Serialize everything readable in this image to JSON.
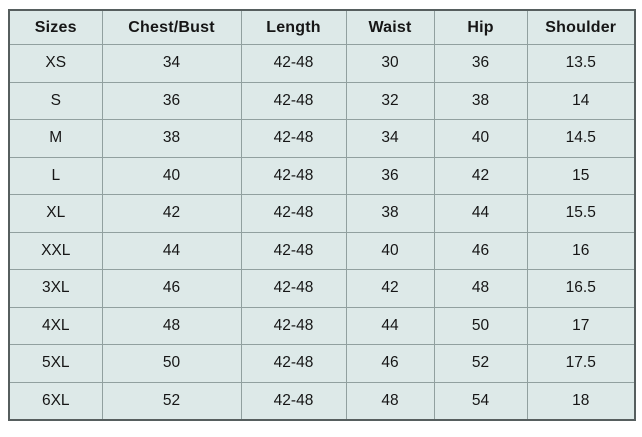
{
  "colors": {
    "page_background": "#ffffff",
    "cell_background": "#dde9e8",
    "grid_line": "#91a09f",
    "outer_border": "#565e5e",
    "text": "#161616"
  },
  "chart_data": {
    "type": "table",
    "columns": [
      "Sizes",
      "Chest/Bust",
      "Length",
      "Waist",
      "Hip",
      "Shoulder"
    ],
    "rows": [
      [
        "XS",
        "34",
        "42-48",
        "30",
        "36",
        "13.5"
      ],
      [
        "S",
        "36",
        "42-48",
        "32",
        "38",
        "14"
      ],
      [
        "M",
        "38",
        "42-48",
        "34",
        "40",
        "14.5"
      ],
      [
        "L",
        "40",
        "42-48",
        "36",
        "42",
        "15"
      ],
      [
        "XL",
        "42",
        "42-48",
        "38",
        "44",
        "15.5"
      ],
      [
        "XXL",
        "44",
        "42-48",
        "40",
        "46",
        "16"
      ],
      [
        "3XL",
        "46",
        "42-48",
        "42",
        "48",
        "16.5"
      ],
      [
        "4XL",
        "48",
        "42-48",
        "44",
        "50",
        "17"
      ],
      [
        "5XL",
        "50",
        "42-48",
        "46",
        "52",
        "17.5"
      ],
      [
        "6XL",
        "52",
        "42-48",
        "48",
        "54",
        "18"
      ]
    ]
  }
}
